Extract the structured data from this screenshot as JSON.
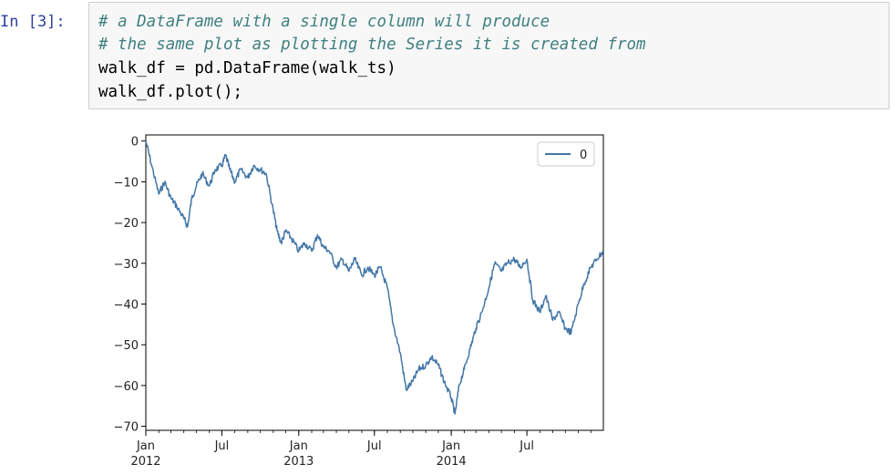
{
  "cell": {
    "prompt": "In [3]:",
    "code_lines": [
      {
        "text": "# a DataFrame with a single column will produce",
        "kind": "comment"
      },
      {
        "text": "# the same plot as plotting the Series it is created from",
        "kind": "comment"
      },
      {
        "text": "walk_df = pd.DataFrame(walk_ts)",
        "kind": "code"
      },
      {
        "text": "walk_df.plot();",
        "kind": "code"
      }
    ]
  },
  "colors": {
    "prompt": "#303f9f",
    "comment": "#408080",
    "line": "#4377a8",
    "cell_background": "#f7f7f7",
    "cell_border": "#cfcfcf"
  },
  "chart_data": {
    "type": "line",
    "title": "",
    "xlabel": "",
    "ylabel": "",
    "ylim": [
      -71,
      1.5
    ],
    "y_ticks": [
      0,
      -10,
      -20,
      -30,
      -40,
      -50,
      -60,
      -70
    ],
    "y_tick_labels": [
      "0",
      "−10",
      "−20",
      "−30",
      "−40",
      "−50",
      "−60",
      "−70"
    ],
    "x_ticks": [
      {
        "date": "2012-01-01",
        "line1": "Jan",
        "line2": "2012"
      },
      {
        "date": "2012-07-01",
        "line1": "Jul",
        "line2": ""
      },
      {
        "date": "2013-01-01",
        "line1": "Jan",
        "line2": "2013"
      },
      {
        "date": "2013-07-01",
        "line1": "Jul",
        "line2": ""
      },
      {
        "date": "2014-01-01",
        "line1": "Jan",
        "line2": "2014"
      },
      {
        "date": "2014-07-01",
        "line1": "Jul",
        "line2": ""
      }
    ],
    "xlim": [
      "2012-01-01",
      "2014-12-31"
    ],
    "grid": false,
    "legend": {
      "location": "top-right",
      "entries": [
        "0"
      ]
    },
    "series": [
      {
        "name": "0",
        "points": [
          [
            "2012-01-01",
            0
          ],
          [
            "2012-01-15",
            -6
          ],
          [
            "2012-02-01",
            -13
          ],
          [
            "2012-02-15",
            -10
          ],
          [
            "2012-03-01",
            -14
          ],
          [
            "2012-03-15",
            -16
          ],
          [
            "2012-04-01",
            -19
          ],
          [
            "2012-04-10",
            -21
          ],
          [
            "2012-04-20",
            -14
          ],
          [
            "2012-05-01",
            -11
          ],
          [
            "2012-05-15",
            -8
          ],
          [
            "2012-06-01",
            -11
          ],
          [
            "2012-06-15",
            -7
          ],
          [
            "2012-07-01",
            -6
          ],
          [
            "2012-07-10",
            -3.5
          ],
          [
            "2012-07-20",
            -7
          ],
          [
            "2012-08-01",
            -10
          ],
          [
            "2012-08-15",
            -7
          ],
          [
            "2012-09-01",
            -9
          ],
          [
            "2012-09-15",
            -6
          ],
          [
            "2012-10-01",
            -7
          ],
          [
            "2012-10-15",
            -8
          ],
          [
            "2012-11-01",
            -17
          ],
          [
            "2012-11-10",
            -22
          ],
          [
            "2012-11-20",
            -25
          ],
          [
            "2012-12-01",
            -22
          ],
          [
            "2012-12-15",
            -24
          ],
          [
            "2013-01-01",
            -27
          ],
          [
            "2013-01-15",
            -25
          ],
          [
            "2013-02-01",
            -27
          ],
          [
            "2013-02-15",
            -23
          ],
          [
            "2013-03-01",
            -26
          ],
          [
            "2013-03-15",
            -27
          ],
          [
            "2013-04-01",
            -31
          ],
          [
            "2013-04-15",
            -29
          ],
          [
            "2013-05-01",
            -32
          ],
          [
            "2013-05-15",
            -29
          ],
          [
            "2013-06-01",
            -33
          ],
          [
            "2013-06-15",
            -31
          ],
          [
            "2013-07-01",
            -33
          ],
          [
            "2013-07-15",
            -31
          ],
          [
            "2013-08-01",
            -36
          ],
          [
            "2013-08-15",
            -45
          ],
          [
            "2013-09-01",
            -52
          ],
          [
            "2013-09-15",
            -61
          ],
          [
            "2013-10-01",
            -59
          ],
          [
            "2013-10-15",
            -56
          ],
          [
            "2013-11-01",
            -55
          ],
          [
            "2013-11-15",
            -53
          ],
          [
            "2013-12-01",
            -55
          ],
          [
            "2013-12-15",
            -59
          ],
          [
            "2014-01-01",
            -63
          ],
          [
            "2014-01-10",
            -67
          ],
          [
            "2014-01-20",
            -60
          ],
          [
            "2014-02-01",
            -56
          ],
          [
            "2014-02-15",
            -51
          ],
          [
            "2014-03-01",
            -46
          ],
          [
            "2014-03-15",
            -42
          ],
          [
            "2014-04-01",
            -36
          ],
          [
            "2014-04-15",
            -30
          ],
          [
            "2014-05-01",
            -32
          ],
          [
            "2014-05-15",
            -30
          ],
          [
            "2014-06-01",
            -29
          ],
          [
            "2014-06-15",
            -31
          ],
          [
            "2014-07-01",
            -29
          ],
          [
            "2014-07-15",
            -39
          ],
          [
            "2014-08-01",
            -42
          ],
          [
            "2014-08-15",
            -38
          ],
          [
            "2014-09-01",
            -44
          ],
          [
            "2014-09-15",
            -42
          ],
          [
            "2014-10-01",
            -46
          ],
          [
            "2014-10-15",
            -47
          ],
          [
            "2014-11-01",
            -40
          ],
          [
            "2014-11-15",
            -35
          ],
          [
            "2014-12-01",
            -31
          ],
          [
            "2014-12-15",
            -29
          ],
          [
            "2014-12-31",
            -27
          ]
        ]
      }
    ]
  }
}
